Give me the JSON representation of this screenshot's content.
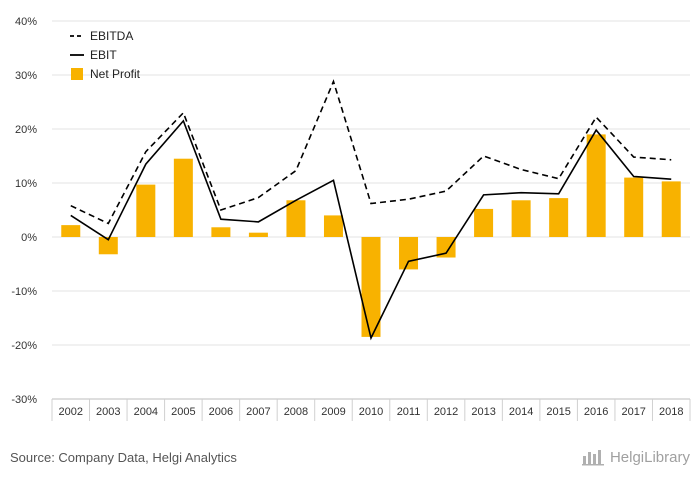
{
  "chart_data": {
    "type": "bar+line",
    "categories": [
      "2002",
      "2003",
      "2004",
      "2005",
      "2006",
      "2007",
      "2008",
      "2009",
      "2010",
      "2011",
      "2012",
      "2013",
      "2014",
      "2015",
      "2016",
      "2017",
      "2018"
    ],
    "series": [
      {
        "name": "EBITDA",
        "kind": "line",
        "style": "dashed",
        "color": "#000000",
        "values": [
          5.8,
          2.5,
          15.8,
          23.0,
          5.0,
          7.3,
          12.3,
          28.8,
          6.2,
          7.0,
          8.5,
          15.0,
          12.5,
          10.8,
          22.2,
          14.8,
          14.3
        ]
      },
      {
        "name": "EBIT",
        "kind": "line",
        "style": "solid",
        "color": "#000000",
        "values": [
          4.0,
          -0.5,
          13.5,
          21.5,
          3.3,
          2.8,
          6.8,
          10.5,
          -18.7,
          -4.5,
          -3.0,
          7.8,
          8.2,
          8.0,
          19.8,
          11.2,
          10.7
        ]
      },
      {
        "name": "Net Profit",
        "kind": "bar",
        "color": "#F8B200",
        "values": [
          2.2,
          -3.2,
          9.7,
          14.5,
          1.8,
          0.8,
          6.8,
          4.0,
          -18.5,
          -6.0,
          -3.8,
          5.2,
          6.8,
          7.2,
          19.0,
          11.0,
          10.3
        ]
      }
    ],
    "y_ticks": [
      "40%",
      "30%",
      "20%",
      "10%",
      "0%",
      "-10%",
      "-20%",
      "-30%"
    ],
    "y_tick_values": [
      40,
      30,
      20,
      10,
      0,
      -10,
      -20,
      -30
    ],
    "ylim": [
      -30,
      40
    ],
    "grid": true,
    "legend_position": "top-left"
  },
  "footer": {
    "source": "Source: Company Data, Helgi Analytics",
    "brand": "HelgiLibrary",
    "brand_icon": "helgi-logo-icon"
  }
}
